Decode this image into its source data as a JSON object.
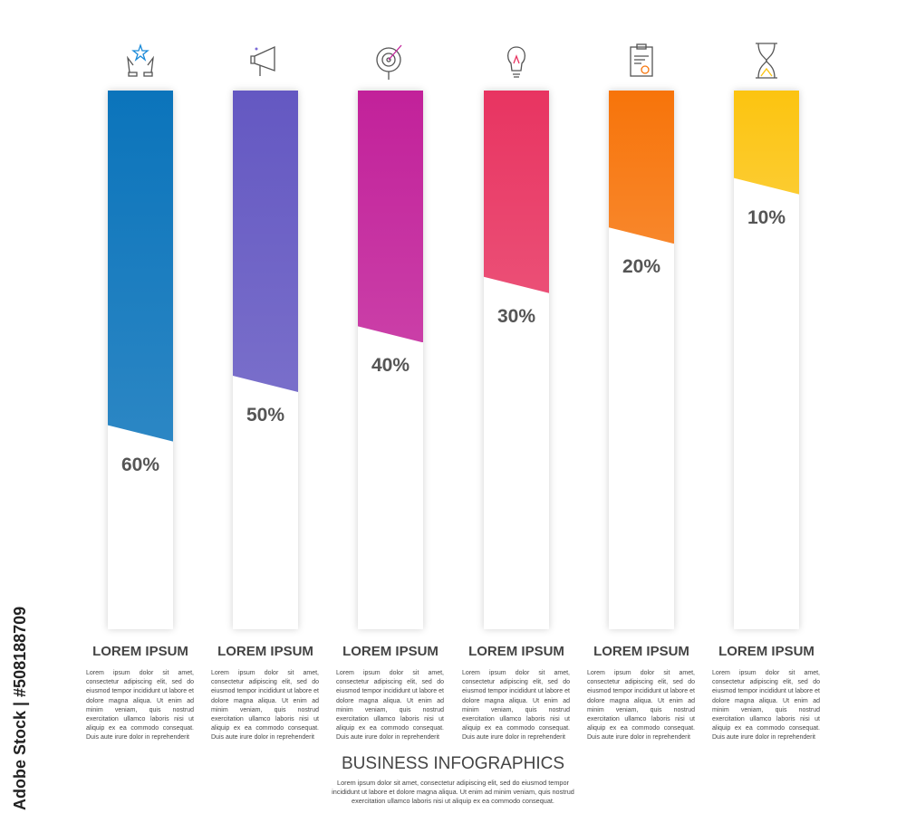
{
  "chart_data": {
    "type": "bar",
    "title": "BUSINESS INFOGRAPHICS",
    "subtitle": "Lorem ipsum dolor sit amet, consectetur adipiscing elit, sed do eiusmod tempor incididunt ut labore et dolore magna aliqua. Ut enim ad minim veniam, quis nostrud exercitation ullamco laboris nisi ut aliquip ex ea commodo consequat.",
    "categories": [
      "LOREM IPSUM",
      "LOREM IPSUM",
      "LOREM IPSUM",
      "LOREM IPSUM",
      "LOREM IPSUM",
      "LOREM IPSUM"
    ],
    "values": [
      60,
      50,
      40,
      30,
      20,
      10
    ],
    "labels": [
      "60%",
      "50%",
      "40%",
      "30%",
      "20%",
      "10%"
    ],
    "colors": [
      "#0b74bb",
      "#6458c2",
      "#c2219a",
      "#e83461",
      "#f7740a",
      "#fcc410"
    ],
    "icons": [
      "hands-star-icon",
      "megaphone-icon",
      "target-icon",
      "lightbulb-icon",
      "clipboard-icon",
      "hourglass-icon"
    ],
    "description": "Lorem ipsum dolor sit amet, consectetur adipiscing elit, sed do eiusmod tempor incididunt ut labore et dolore magna aliqua. Ut enim ad minim veniam, quis nostrud exercitation ullamco laboris nisi ut aliquip ex ea commodo consequat. Duis aute irure dolor in reprehenderit",
    "ylim": [
      0,
      100
    ]
  },
  "watermark": "Adobe Stock | #508188709"
}
